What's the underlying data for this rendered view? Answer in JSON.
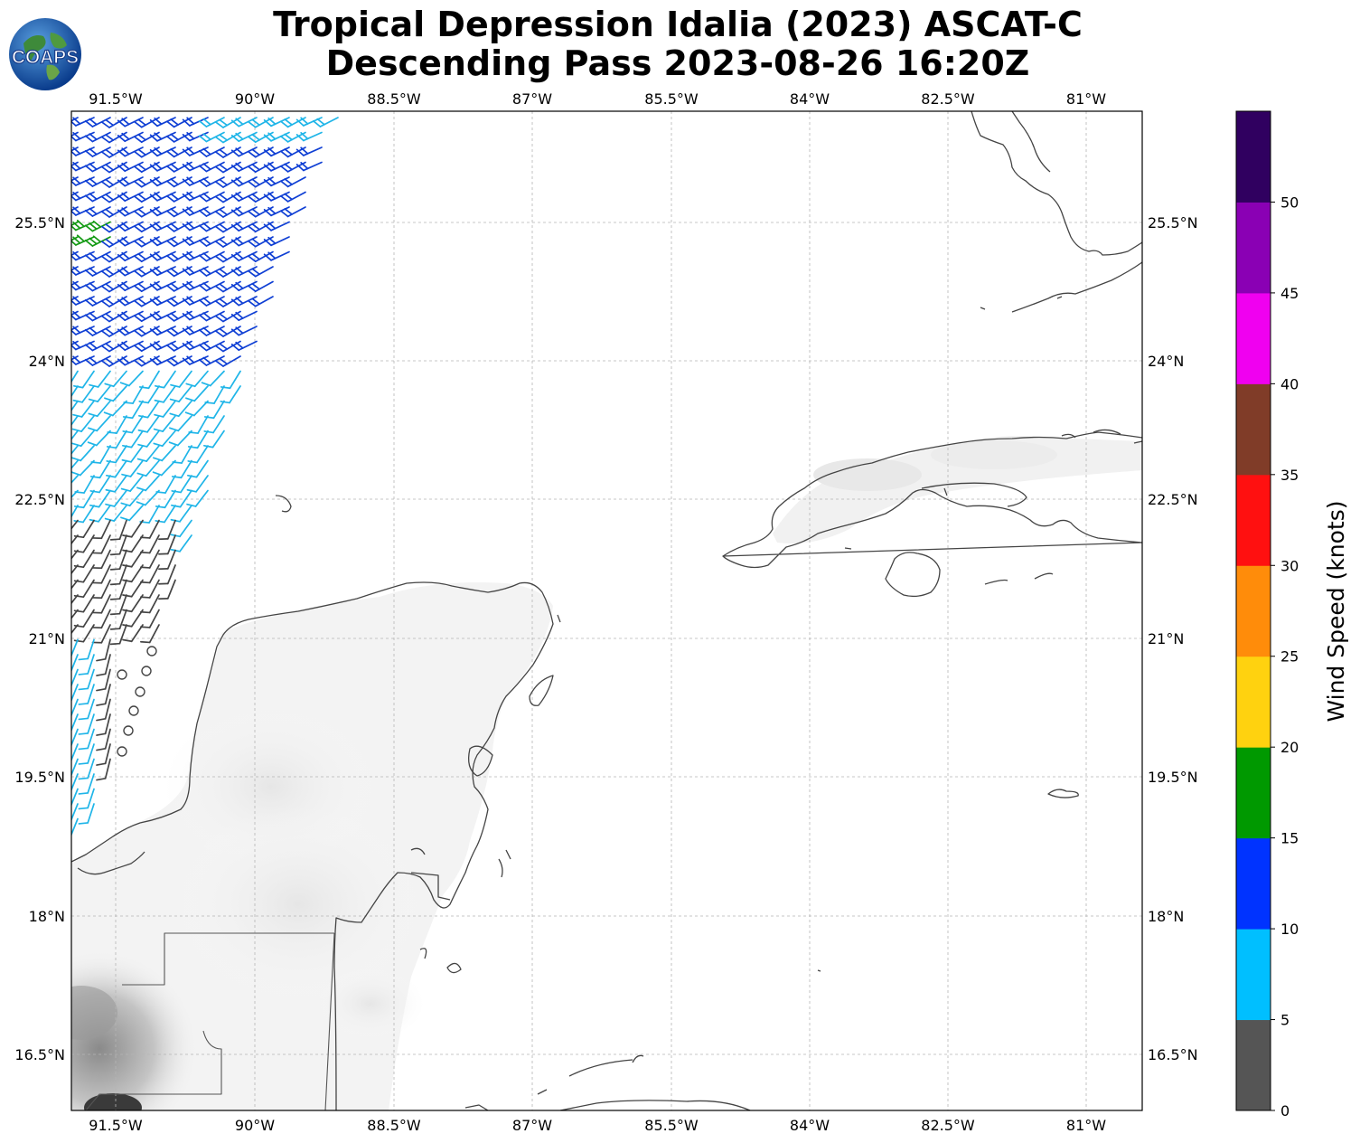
{
  "title": {
    "line1": "Tropical Depression Idalia (2023) ASCAT-C",
    "line2": "Descending Pass 2023-08-26 16:20Z"
  },
  "logo": {
    "text": "COAPS",
    "icon": "globe-logo-icon"
  },
  "map": {
    "lon_labels": [
      "91.5°W",
      "90°W",
      "88.5°W",
      "87°W",
      "85.5°W",
      "84°W",
      "82.5°W",
      "81°W"
    ],
    "lat_labels": [
      "25.5°N",
      "24°N",
      "22.5°N",
      "21°N",
      "19.5°N",
      "18°N",
      "16.5°N"
    ],
    "regions": [
      "Yucatan Peninsula",
      "Cuba",
      "Florida",
      "Isla de la Juventud"
    ]
  },
  "colorbar": {
    "label": "Wind Speed (knots)",
    "ticks": [
      "0",
      "5",
      "10",
      "15",
      "20",
      "25",
      "30",
      "35",
      "40",
      "45",
      "50"
    ],
    "colors": [
      "#555555",
      "#00bfff",
      "#0033ff",
      "#009900",
      "#ffd20f",
      "#ff8c0a",
      "#ff1010",
      "#803c28",
      "#f000f0",
      "#8a00b4",
      "#300060"
    ]
  },
  "wind_colors": {
    "calm": "#444444",
    "low": "#1fb5e8",
    "moderate": "#0f3fd4",
    "fresh": "#139a13"
  }
}
